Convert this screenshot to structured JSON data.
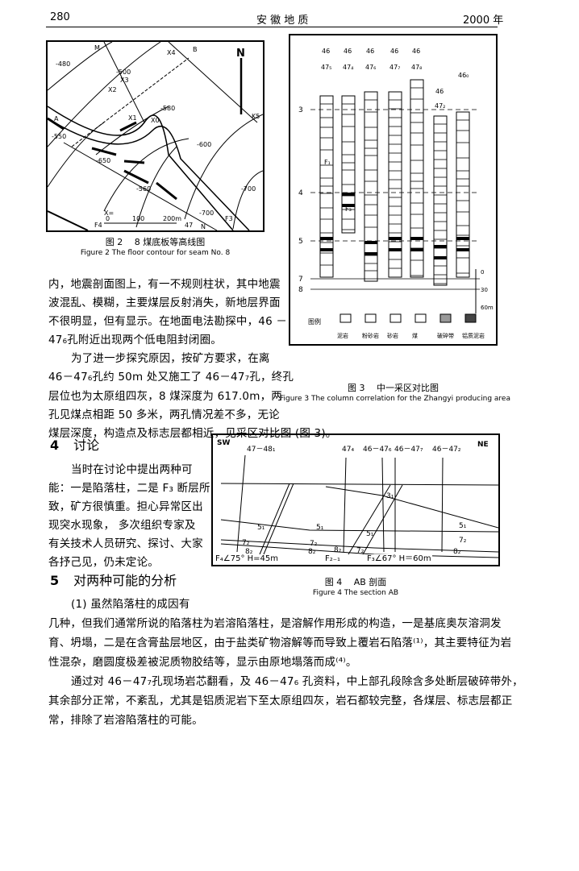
{
  "header": {
    "page_number": "280",
    "journal": "安 徽 地 质",
    "year": "2000 年"
  },
  "figure2": {
    "caption_cn": "图 2　 8 煤底板等高线图",
    "caption_en": "Figure 2  The floor contour for seam No. 8",
    "labels": {
      "m": "M",
      "b": "B",
      "a": "A",
      "n_arrow": "N",
      "n": "N",
      "x4": "X4",
      "x3": "X3",
      "x2": "X2",
      "x1": "X1",
      "xo": "X0",
      "k5": "K5",
      "f4": "F4",
      "f3": "F3",
      "c480": "-480",
      "c500": "-500",
      "c550": "-550",
      "c580": "-580",
      "c600": "-600",
      "c650": "-650",
      "c700": "-700",
      "c560": "-560",
      "c780": "-700",
      "scale0": "0",
      "scale100": "100",
      "scale200": "200m",
      "x_label": "X=",
      "n47": "47"
    }
  },
  "figure3": {
    "caption_cn": "图 3　 中一采区对比图",
    "caption_en": "Figure 3  The column correlation for the Zhangyi producing area",
    "columns": [
      {
        "top": "46",
        "bottom": "47₅"
      },
      {
        "top": "46",
        "bottom": "47₄"
      },
      {
        "top": "46",
        "bottom": "47₆"
      },
      {
        "top": "46",
        "bottom": "47₇"
      },
      {
        "top": "46",
        "bottom": "47₈"
      },
      {
        "top": "46",
        "bottom": "47₂"
      },
      {
        "top": "46₀",
        "bottom": ""
      }
    ],
    "seam_labels": [
      "3",
      "4",
      "5",
      "7",
      "8"
    ],
    "fault_labels": [
      "F₁",
      "F₃"
    ],
    "scale": [
      "0",
      "30",
      "60m"
    ],
    "legend_title": "图例",
    "legend": [
      "泥岩",
      "粉砂岩",
      "砂岩",
      "煤",
      "破碎带",
      "铝质泥岩"
    ]
  },
  "figure4": {
    "caption_cn": "图 4　 AB 剖面",
    "caption_en": "Figure 4  The section AB",
    "sw": "SW",
    "ne": "NE",
    "wells": [
      "47－48₁",
      "47₄",
      "46－47₆",
      "46－47₇",
      "46－47₂"
    ],
    "layers": [
      "5₁",
      "5₁",
      "5₁",
      "5₁",
      "7₂",
      "7₂",
      "7₂",
      "7₂",
      "8₂",
      "8₂",
      "8₂",
      "8₂",
      "3₁"
    ],
    "faults": [
      "F₄∠75° H=45m",
      "F₂₋₁",
      "F₃∠67°  H＝60m"
    ]
  },
  "body": {
    "para1": [
      "内，地震剖面图上，有一不规则柱状，其中地震",
      "波混乱、模糊，主要煤层反射消失，新地层界面",
      "不很明显，但有显示。在地面电法勘探中，46 －",
      "47₆孔附近出现两个低电阻封闭圈。"
    ],
    "para2": [
      "为了进一步探究原因，按矿方要求，在离",
      "46－47₆孔约 50m 处又施工了 46－47₇孔，终孔",
      "层位也为太原组四灰，8 煤深度为 617.0m，两",
      "孔见煤点相距 50 多米，两孔情况差不多，无论",
      "煤层深度，构造点及标志层都相近，见采区对比图 (图 3)。"
    ],
    "section4": {
      "num": "4",
      "title": "讨论"
    },
    "para3": [
      "当时在讨论中提出两种可",
      "能：一是陷落柱，二是 F₃ 断层所",
      "致，矿方很慎重。担心异常区出",
      "现突水现象， 多次组织专家及",
      "有关技术人员研究、探讨、大家",
      "各抒己见，仍未定论。"
    ],
    "section5": {
      "num": "5",
      "title": "对两种可能的分析"
    },
    "para4": [
      "(1) 虽然陷落柱的成因有",
      "几种，但我们通常所说的陷落柱为岩溶陷落柱，是溶解作用形成的构造，一是基底奥灰溶洞发",
      "育、坍塌，二是在含膏盐层地区，由于盐类矿物溶解等而导致上覆岩石陷落⁽¹⁾，其主要特征为岩",
      "性混杂，磨圆度极差被泥质物胶结等，显示由原地塌落而成⁽⁴⁾。"
    ],
    "para5": [
      "通过对 46－47₇孔现场岩芯翻看，及 46－47₆ 孔资料，中上部孔段除含多处断层破碎带外，",
      "其余部分正常，不紊乱，尤其是铝质泥岩下至太原组四灰，岩石都较完整，各煤层、标志层都正",
      "常，排除了岩溶陷落柱的可能。"
    ]
  }
}
